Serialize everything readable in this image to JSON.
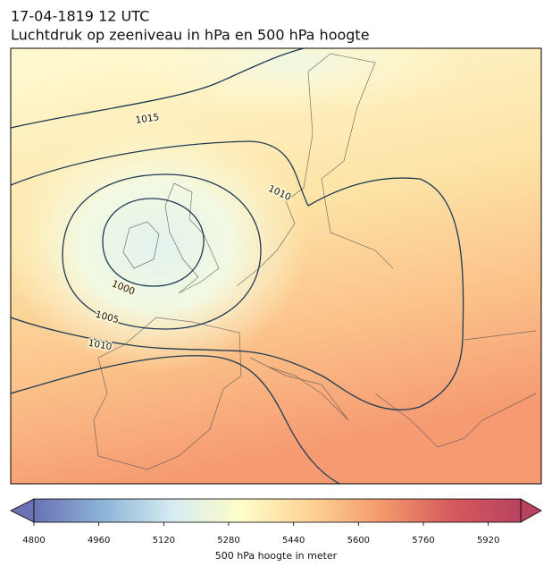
{
  "header": {
    "title": "17-04-1819 12 UTC",
    "subtitle": "Luchtdruk op zeeniveau in hPa en 500 hPa hoogte"
  },
  "map": {
    "contour_labels": [
      1015,
      1010,
      1000,
      1005,
      1010
    ]
  },
  "colorbar": {
    "lim": [
      4800,
      6000
    ],
    "ticks": [
      4800,
      4960,
      5120,
      5280,
      5440,
      5600,
      5760,
      5920
    ],
    "label": "500 hPa hoogte in meter",
    "colors": [
      "#6a72b3",
      "#8db4d6",
      "#d6ecf2",
      "#fffdc8",
      "#fdd193",
      "#f39a6c",
      "#d55a5e",
      "#b7435f"
    ]
  }
}
